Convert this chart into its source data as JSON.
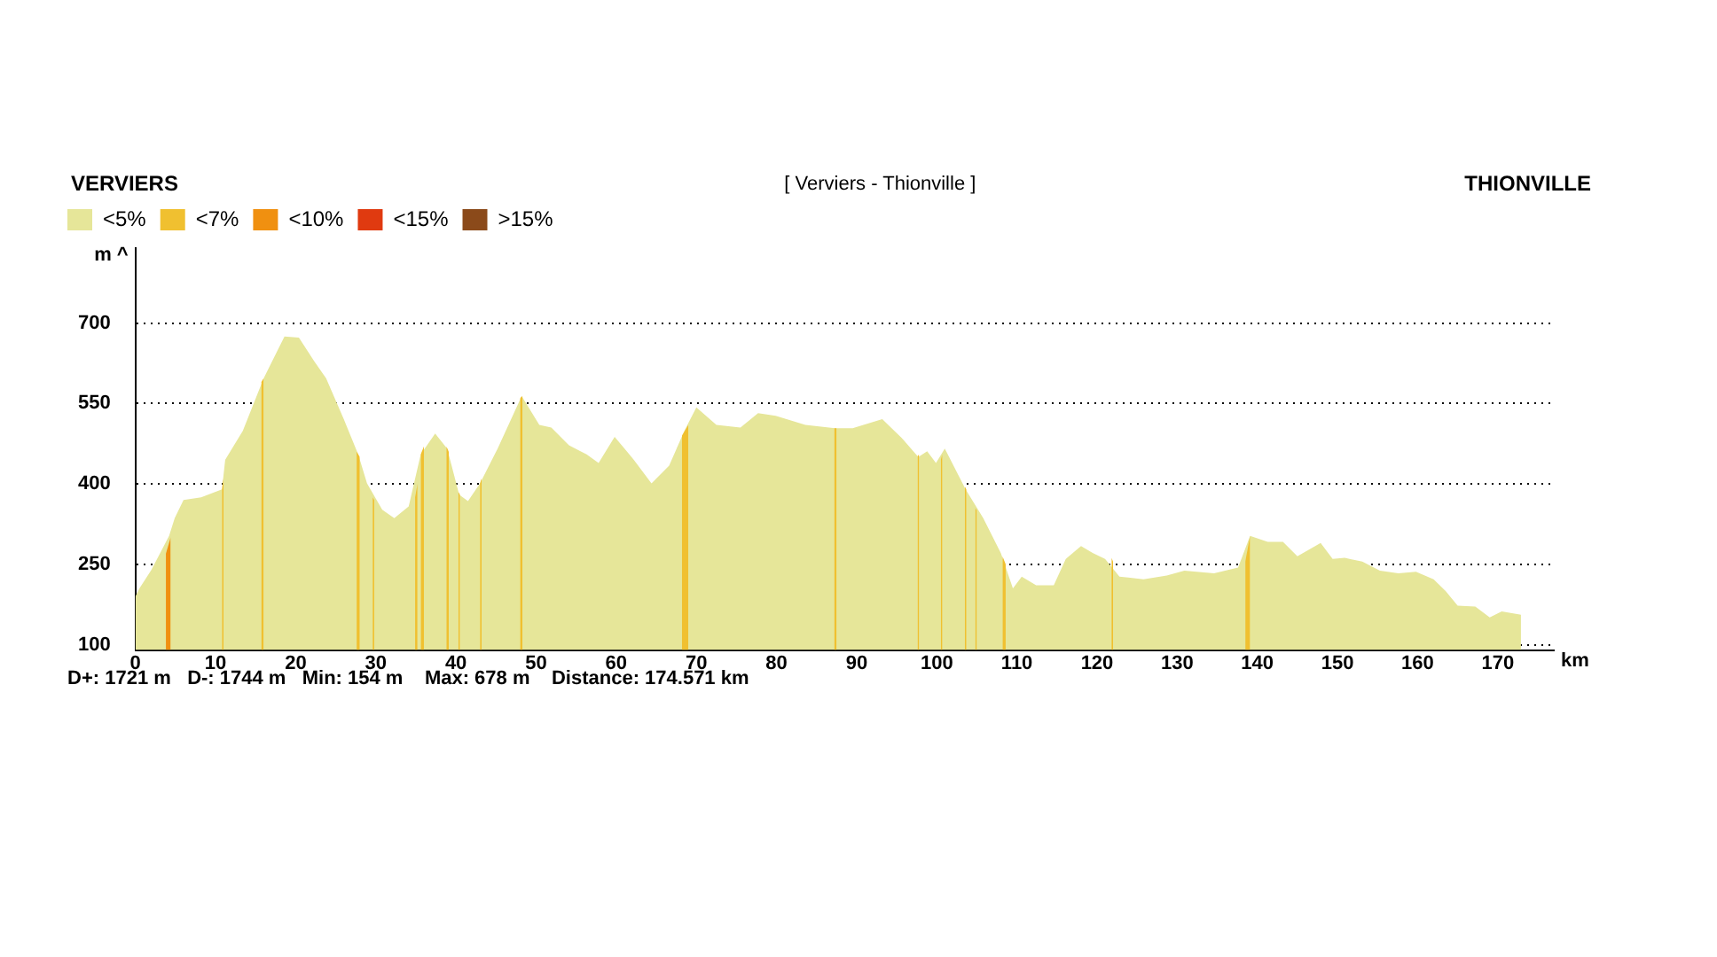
{
  "chart_data": {
    "type": "area",
    "title": "[ Verviers - Thionville ]",
    "xlabel": "km",
    "ylabel": "m ^",
    "annotations": [
      "VERVIERS",
      "THIONVILLE",
      "D+: 1721 m   D-: 1744 m   Min: 154 m    Max: 678 m    Distance: 174.571 km"
    ],
    "xlim": [
      0,
      177
    ],
    "xticks": [
      0,
      10,
      20,
      30,
      40,
      50,
      60,
      70,
      80,
      90,
      100,
      110,
      120,
      130,
      140,
      150,
      160,
      170
    ],
    "ylim": [
      90,
      840
    ],
    "yticks": [
      100,
      250,
      400,
      550,
      700
    ],
    "grid": "y",
    "legend": "top left",
    "series": [
      {
        "name": "<5%",
        "color": "#e6e699",
        "x": [
          0,
          0.5,
          2,
          4.2,
          4.9,
          6,
          8.2,
          10.8,
          11.2,
          13.4,
          16,
          17.8,
          18.6,
          20.4,
          22.3,
          23.8,
          26,
          27.8,
          28.9,
          30.8,
          32.3,
          34.1,
          35.6,
          37.4,
          38.9,
          40.4,
          41.5,
          43,
          45.2,
          48.2,
          50.4,
          51.9,
          54.1,
          56.3,
          57.8,
          59.8,
          62.2,
          64.4,
          66.6,
          68.5,
          70,
          72.5,
          75.5,
          77.7,
          79.9,
          83.6,
          87.3,
          89.5,
          93.2,
          95.8,
          97.7,
          98.8,
          99.9,
          101,
          103.6,
          105.8,
          108,
          109.5,
          110.6,
          112.4,
          114.6,
          116.1,
          118,
          119.5,
          121,
          122.8,
          125.8,
          128.7,
          130.9,
          134.6,
          137.6,
          139.1,
          141.3,
          143.2,
          145,
          147.9,
          149.4,
          150.9,
          153.1,
          155.3,
          157.6,
          159.8,
          162,
          163.5,
          165,
          167.2,
          169,
          170.5,
          172.9
        ],
        "values": [
          190,
          205,
          240,
          303,
          336,
          370,
          375,
          390,
          445,
          499,
          597,
          651,
          675,
          673,
          629,
          597,
          521,
          455,
          401,
          352,
          336,
          358,
          455,
          494,
          466,
          380,
          368,
          401,
          466,
          564,
          510,
          505,
          472,
          455,
          439,
          488,
          445,
          401,
          434,
          499,
          543,
          510,
          505,
          532,
          527,
          510,
          504,
          504,
          521,
          483,
          450,
          461,
          439,
          466,
          390,
          336,
          271,
          205,
          227,
          211,
          211,
          260,
          284,
          271,
          260,
          227,
          222,
          229,
          238,
          233,
          244,
          303,
          292,
          292,
          265,
          290,
          260,
          262,
          255,
          238,
          233,
          236,
          222,
          200,
          173,
          171,
          151,
          162,
          156
        ]
      },
      {
        "name": "<7%",
        "color": "#f0c030",
        "x": [
          10.8,
          11.0,
          11.5,
          15.7,
          16.0,
          16.5,
          27.6,
          28.0,
          28.5,
          29.6,
          29.8,
          30,
          34.9,
          35.2,
          35.4,
          35.6,
          36.0,
          36.5,
          38.8,
          39.1,
          39.5,
          40.3,
          40.5,
          41,
          43.0,
          43.2,
          44,
          48.0,
          48.3,
          49,
          68.2,
          69.0,
          69.5,
          87.2,
          87.5,
          88,
          97.6,
          97.8,
          98.3,
          100.5,
          100.7,
          101.5,
          103.5,
          103.7,
          104.3,
          104.8,
          105.0,
          105.5,
          108.2,
          108.6,
          109,
          121.8,
          122.0,
          123,
          138.5,
          139.1
        ],
        "values": [
          390,
          410,
          null,
          590,
          597,
          null,
          460,
          450,
          null,
          375,
          370,
          null,
          375,
          400,
          null,
          455,
          470,
          null,
          470,
          460,
          null,
          385,
          380,
          null,
          401,
          410,
          null,
          560,
          564,
          null,
          490,
          510,
          null,
          504,
          504,
          null,
          452,
          455,
          null,
          445,
          455,
          null,
          395,
          390,
          null,
          355,
          350,
          null,
          265,
          250,
          null,
          262,
          255,
          null,
          255,
          303
        ]
      },
      {
        "name": "<10%",
        "color": "#f09010",
        "x": [
          3.8,
          4.4
        ],
        "values": [
          270,
          300
        ]
      },
      {
        "name": "<15%",
        "color": "#e03a10"
      },
      {
        "name": ">15%",
        "color": "#8b4a1a"
      }
    ]
  }
}
